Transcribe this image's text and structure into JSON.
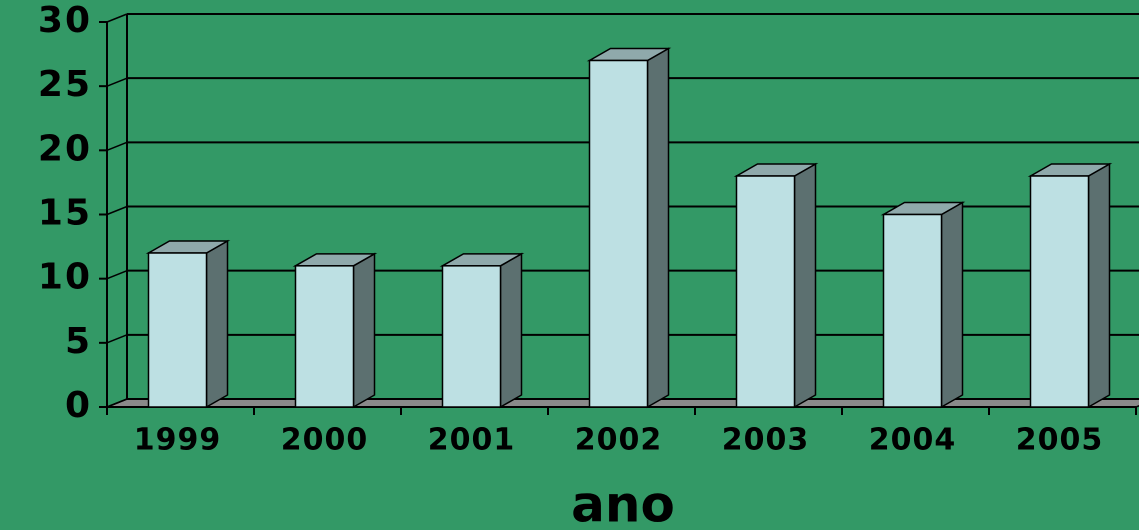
{
  "chart_data": {
    "type": "bar3d",
    "x_label": "ano",
    "categories": [
      "1999",
      "2000",
      "2001",
      "2002",
      "2003",
      "2004",
      "2005"
    ],
    "values": [
      12,
      11,
      11,
      27,
      18,
      15,
      18
    ],
    "color": "#bde0e3",
    "ylim": [
      0,
      30
    ],
    "yticks": [
      0,
      5,
      10,
      15,
      20,
      25,
      30
    ],
    "grid": true
  }
}
